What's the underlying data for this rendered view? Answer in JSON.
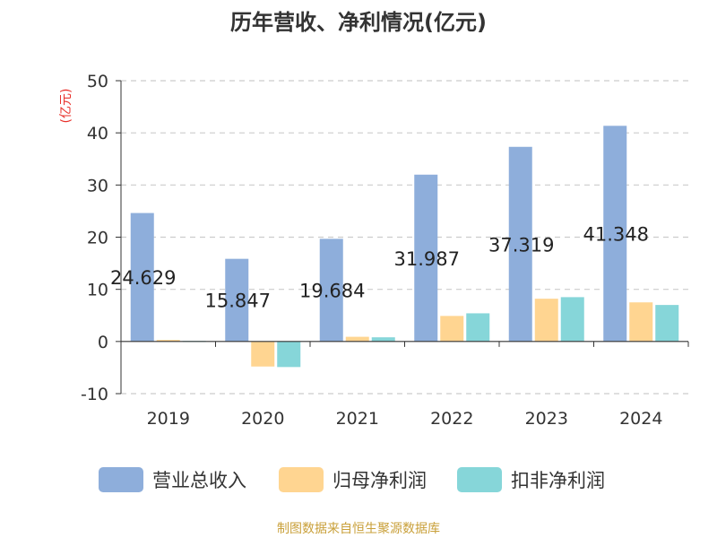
{
  "chart_data": {
    "type": "bar",
    "title": "历年营收、净利情况(亿元)",
    "unit_label": "(亿元)",
    "categories": [
      "2019",
      "2020",
      "2021",
      "2022",
      "2023",
      "2024"
    ],
    "ylim": [
      -10,
      50
    ],
    "yticks": [
      -10,
      0,
      10,
      20,
      30,
      40,
      50
    ],
    "grid": true,
    "legend_position": "bottom",
    "series": [
      {
        "name": "营业总收入",
        "color": "#8eaedb",
        "values": [
          24.629,
          15.847,
          19.684,
          31.987,
          37.319,
          41.348
        ],
        "labels": [
          "24.629",
          "15.847",
          "19.684",
          "31.987",
          "37.319",
          "41.348"
        ]
      },
      {
        "name": "归母净利润",
        "color": "#ffd591",
        "values": [
          0.3,
          -4.8,
          0.9,
          4.9,
          8.2,
          7.5
        ]
      },
      {
        "name": "扣非净利润",
        "color": "#86d6d9",
        "values": [
          0.1,
          -4.9,
          0.8,
          5.4,
          8.5,
          7.0
        ]
      }
    ]
  },
  "source_text": "制图数据来自恒生聚源数据库"
}
